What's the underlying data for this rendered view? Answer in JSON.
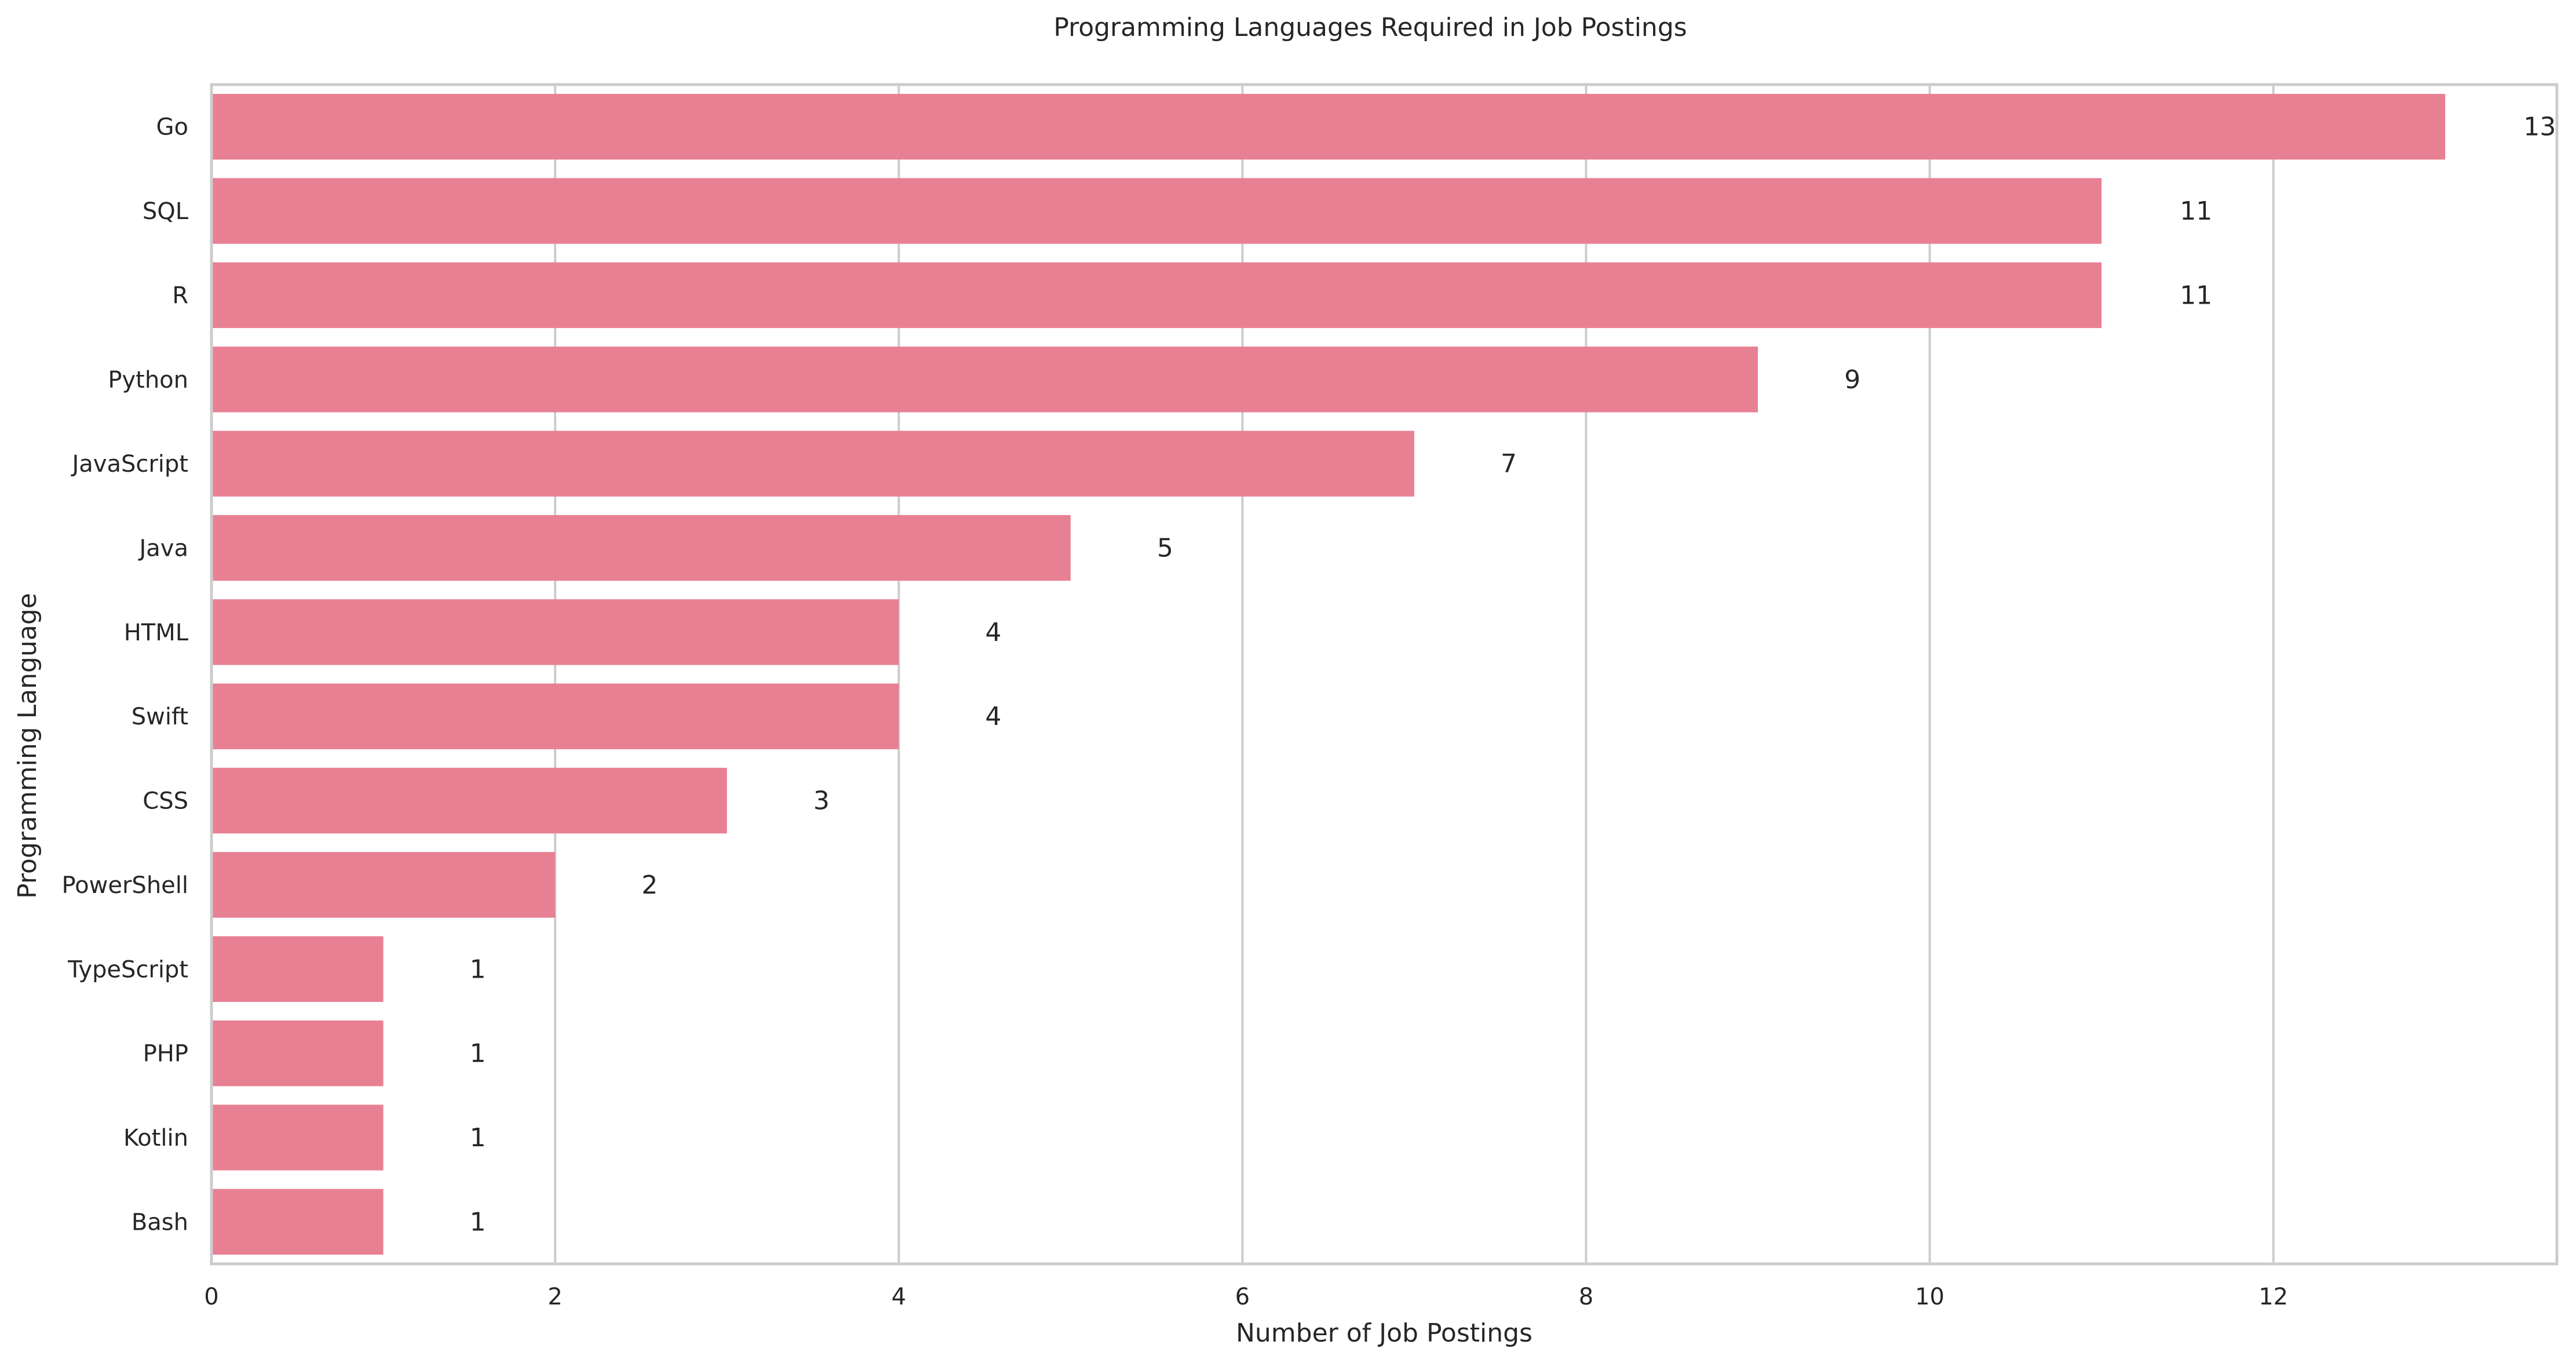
{
  "chart_data": {
    "type": "bar",
    "orientation": "horizontal",
    "title": "Programming Languages Required in Job Postings",
    "xlabel": "Number of Job Postings",
    "ylabel": "Programming Language",
    "categories": [
      "Go",
      "SQL",
      "R",
      "Python",
      "JavaScript",
      "Java",
      "HTML",
      "Swift",
      "CSS",
      "PowerShell",
      "TypeScript",
      "PHP",
      "Kotlin",
      "Bash"
    ],
    "values": [
      13,
      11,
      11,
      9,
      7,
      5,
      4,
      4,
      3,
      2,
      1,
      1,
      1,
      1
    ],
    "xlim": [
      0,
      13.65
    ],
    "xticks": [
      "0",
      "2",
      "4",
      "6",
      "8",
      "10",
      "12"
    ],
    "grid": "vertical",
    "bar_color": "#e88093",
    "value_labels": true
  }
}
